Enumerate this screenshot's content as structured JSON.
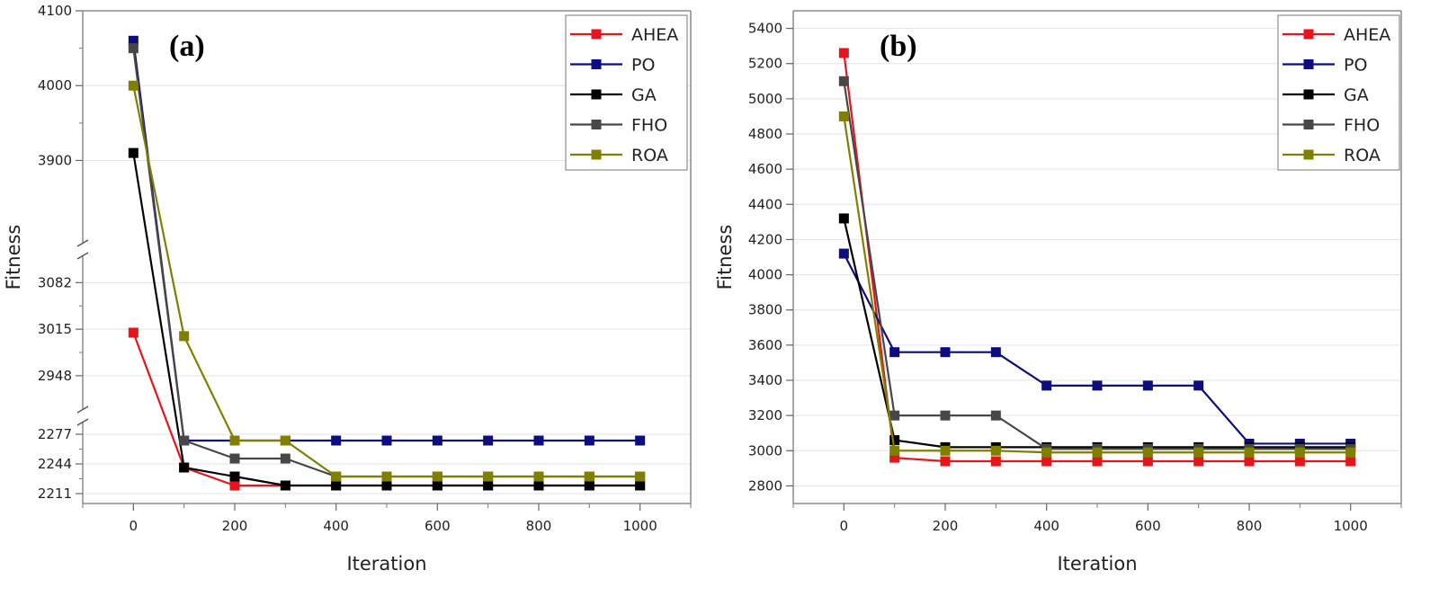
{
  "chart_data": [
    {
      "type": "line",
      "panel_label": "(a)",
      "xlabel": "Iteration",
      "ylabel": "Fitness",
      "xlim": [
        -100,
        1100
      ],
      "xticks": [
        "0",
        "200",
        "400",
        "600",
        "800",
        "1000"
      ],
      "y_broken_axis": true,
      "y_segments": [
        {
          "range": [
            2200,
            2290
          ],
          "ticks": [
            "2211",
            "2244",
            "2277"
          ]
        },
        {
          "range": [
            2900,
            3120
          ],
          "ticks": [
            "2948",
            "3015",
            "3082"
          ]
        },
        {
          "range": [
            3790,
            4100
          ],
          "ticks": [
            "3900",
            "4000",
            "4100"
          ]
        }
      ],
      "x": [
        0,
        100,
        200,
        300,
        400,
        500,
        600,
        700,
        800,
        900,
        1000
      ],
      "series": [
        {
          "name": "AHEA",
          "color": "#e8141b",
          "values": [
            3010,
            2240,
            2220,
            2220,
            2220,
            2220,
            2220,
            2220,
            2220,
            2220,
            2220
          ]
        },
        {
          "name": "PO",
          "color": "#0d0d80",
          "values": [
            4060,
            2270,
            2270,
            2270,
            2270,
            2270,
            2270,
            2270,
            2270,
            2270,
            2270
          ]
        },
        {
          "name": "GA",
          "color": "#000000",
          "values": [
            3910,
            2240,
            2230,
            2220,
            2220,
            2220,
            2220,
            2220,
            2220,
            2220,
            2220
          ]
        },
        {
          "name": "FHO",
          "color": "#474747",
          "values": [
            4050,
            2270,
            2250,
            2250,
            2230,
            2230,
            2230,
            2230,
            2230,
            2230,
            2230
          ]
        },
        {
          "name": "ROA",
          "color": "#808000",
          "values": [
            4000,
            3005,
            2270,
            2270,
            2230,
            2230,
            2230,
            2230,
            2230,
            2230,
            2230
          ]
        }
      ],
      "legend_position": "top-right"
    },
    {
      "type": "line",
      "panel_label": "(b)",
      "xlabel": "Iteration",
      "ylabel": "Fitness",
      "xlim": [
        -100,
        1100
      ],
      "ylim": [
        2700,
        5500
      ],
      "xticks": [
        "0",
        "200",
        "400",
        "600",
        "800",
        "1000"
      ],
      "yticks": [
        "2800",
        "3000",
        "3200",
        "3400",
        "3600",
        "3800",
        "4000",
        "4200",
        "4400",
        "4600",
        "4800",
        "5000",
        "5200",
        "5400"
      ],
      "x": [
        0,
        100,
        200,
        300,
        400,
        500,
        600,
        700,
        800,
        900,
        1000
      ],
      "series": [
        {
          "name": "AHEA",
          "color": "#e8141b",
          "values": [
            5260,
            2960,
            2940,
            2940,
            2940,
            2940,
            2940,
            2940,
            2940,
            2940,
            2940
          ]
        },
        {
          "name": "PO",
          "color": "#0d0d80",
          "values": [
            4120,
            3560,
            3560,
            3560,
            3370,
            3370,
            3370,
            3370,
            3040,
            3040,
            3040
          ]
        },
        {
          "name": "GA",
          "color": "#000000",
          "values": [
            4320,
            3060,
            3020,
            3020,
            3020,
            3020,
            3020,
            3020,
            3020,
            3020,
            3020
          ]
        },
        {
          "name": "FHO",
          "color": "#474747",
          "values": [
            5100,
            3200,
            3200,
            3200,
            3010,
            3010,
            3010,
            3010,
            3010,
            3010,
            3010
          ]
        },
        {
          "name": "ROA",
          "color": "#808000",
          "values": [
            4900,
            3000,
            3000,
            3000,
            2990,
            2990,
            2990,
            2990,
            2990,
            2990,
            2990
          ]
        }
      ],
      "legend_position": "top-right"
    }
  ]
}
